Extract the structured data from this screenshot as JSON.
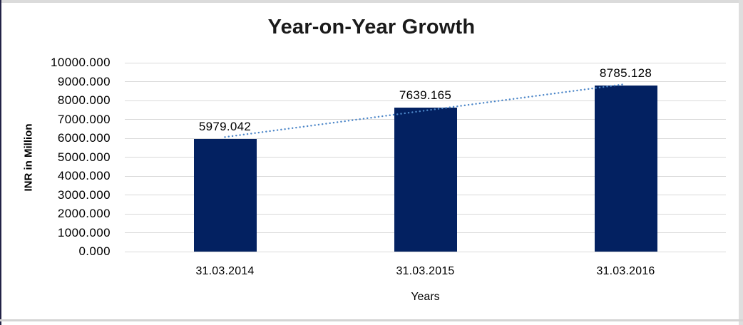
{
  "chart_data": {
    "type": "bar",
    "title": "Year-on-Year Growth",
    "categories": [
      "31.03.2014",
      "31.03.2015",
      "31.03.2016"
    ],
    "values": [
      5979.042,
      7639.165,
      8785.128
    ],
    "data_labels": [
      "5979.042",
      "7639.165",
      "8785.128"
    ],
    "xlabel": "Years",
    "ylabel": "INR in Million",
    "ylim": [
      0,
      10000
    ],
    "ytick_step": 1000,
    "ytick_labels": [
      "0.000",
      "1000.000",
      "2000.000",
      "3000.000",
      "4000.000",
      "5000.000",
      "6000.000",
      "7000.000",
      "8000.000",
      "9000.000",
      "10000.000"
    ],
    "grid": true,
    "legend": "none",
    "trendline": {
      "type": "linear",
      "style": "dotted",
      "span": "first-to-last-category"
    },
    "colors": {
      "bar": "#032161",
      "trendline": "#4C86C8",
      "gridline": "#D9D9D9",
      "axis_text": "#000000",
      "title_text": "#1A1A1A"
    }
  }
}
